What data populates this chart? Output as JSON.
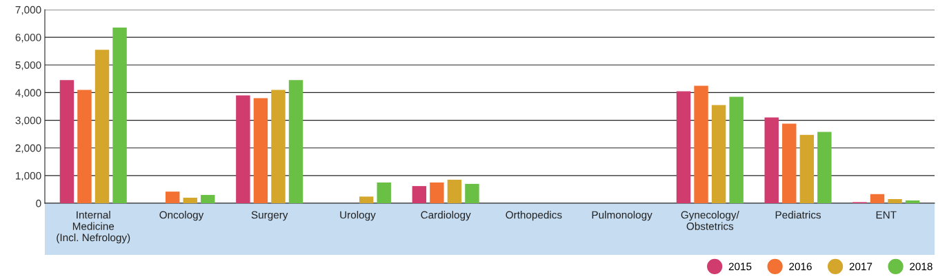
{
  "chart_data": {
    "type": "bar",
    "categories": [
      "Internal\nMedicine\n(Incl. Nefrology)",
      "Oncology",
      "Surgery",
      "Urology",
      "Cardiology",
      "Orthopedics",
      "Pulmonology",
      "Gynecology/\nObstetrics",
      "Pediatrics",
      "ENT"
    ],
    "series": [
      {
        "name": "2015",
        "color": "#d03c6e",
        "values": [
          4450,
          null,
          3900,
          null,
          620,
          null,
          null,
          4050,
          3100,
          40
        ]
      },
      {
        "name": "2016",
        "color": "#f37132",
        "values": [
          4100,
          420,
          3800,
          null,
          750,
          null,
          null,
          4250,
          2880,
          330
        ]
      },
      {
        "name": "2017",
        "color": "#d4a72c",
        "values": [
          5550,
          200,
          4100,
          240,
          850,
          null,
          null,
          3550,
          2470,
          150
        ]
      },
      {
        "name": "2018",
        "color": "#6abf45",
        "values": [
          6350,
          300,
          4450,
          750,
          700,
          null,
          null,
          3850,
          2580,
          100
        ]
      }
    ],
    "ylim": [
      0,
      7000
    ],
    "yticks": [
      {
        "value": 0,
        "label": "0"
      },
      {
        "value": 1000,
        "label": "1,000"
      },
      {
        "value": 2000,
        "label": "2,000"
      },
      {
        "value": 3000,
        "label": "3,000"
      },
      {
        "value": 4000,
        "label": "4,000"
      },
      {
        "value": 5000,
        "label": "5,000"
      },
      {
        "value": 6000,
        "label": "6,000"
      },
      {
        "value": 7000,
        "label": "7,000"
      }
    ],
    "grid": "y",
    "legend": "bottom right"
  }
}
